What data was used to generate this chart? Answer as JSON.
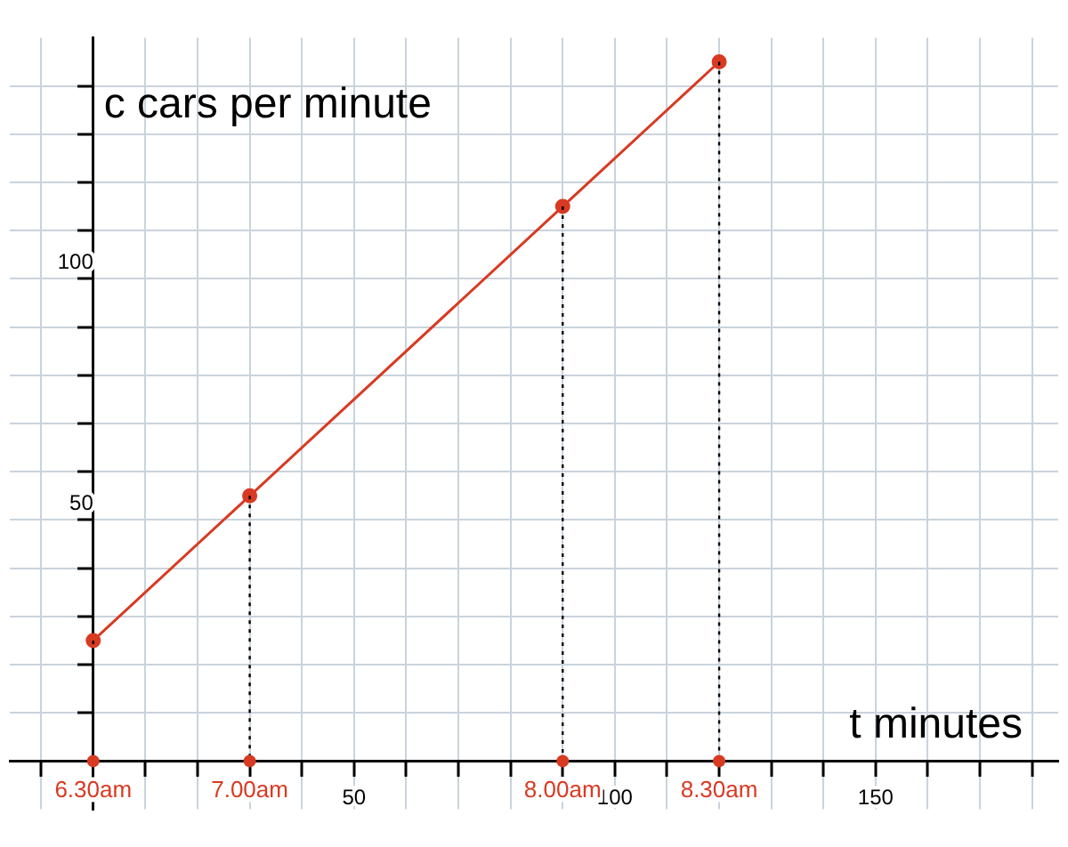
{
  "chart_data": {
    "type": "line",
    "xlabel": "t minutes",
    "ylabel": "c cars per minute",
    "x": [
      0,
      30,
      90,
      120
    ],
    "series": [
      {
        "color": "#d83a22",
        "values": [
          25,
          55,
          115,
          145
        ]
      }
    ],
    "xlim": [
      -16,
      185
    ],
    "ylim": [
      -10,
      150
    ],
    "xticks": [
      {
        "value": -10,
        "label": null
      },
      {
        "value": 10,
        "label": null
      },
      {
        "value": 20,
        "label": null
      },
      {
        "value": 30,
        "label": null
      },
      {
        "value": 40,
        "label": null
      },
      50,
      {
        "value": 60,
        "label": null
      },
      {
        "value": 70,
        "label": null
      },
      {
        "value": 80,
        "label": null
      },
      {
        "value": 90,
        "label": null
      },
      100,
      {
        "value": 110,
        "label": null
      },
      {
        "value": 120,
        "label": null
      },
      {
        "value": 130,
        "label": null
      },
      {
        "value": 140,
        "label": null
      },
      150,
      {
        "value": 160,
        "label": null
      },
      {
        "value": 170,
        "label": null
      },
      {
        "value": 180,
        "label": null
      }
    ],
    "yticks": [
      {
        "value": 10,
        "label": null
      },
      {
        "value": 20,
        "label": null
      },
      {
        "value": 30,
        "label": null
      },
      {
        "value": 40,
        "label": null
      },
      50,
      {
        "value": 60,
        "label": null
      },
      {
        "value": 70,
        "label": null
      },
      {
        "value": 80,
        "label": null
      },
      {
        "value": 90,
        "label": null
      },
      100,
      {
        "value": 110,
        "label": null
      },
      {
        "value": 120,
        "label": null
      },
      {
        "value": 130,
        "label": null
      },
      {
        "value": 140,
        "label": null
      }
    ],
    "grid": true,
    "legend": false,
    "marker": "circle",
    "line_style": "solid",
    "annotations": [
      {
        "text": "6.30am",
        "x": 0,
        "y": 0
      },
      {
        "text": "7.00am",
        "x": 30,
        "y": 0
      },
      {
        "text": "8.00am",
        "x": 90,
        "y": 0
      },
      {
        "text": "8.30am",
        "x": 120,
        "y": 0
      }
    ]
  }
}
